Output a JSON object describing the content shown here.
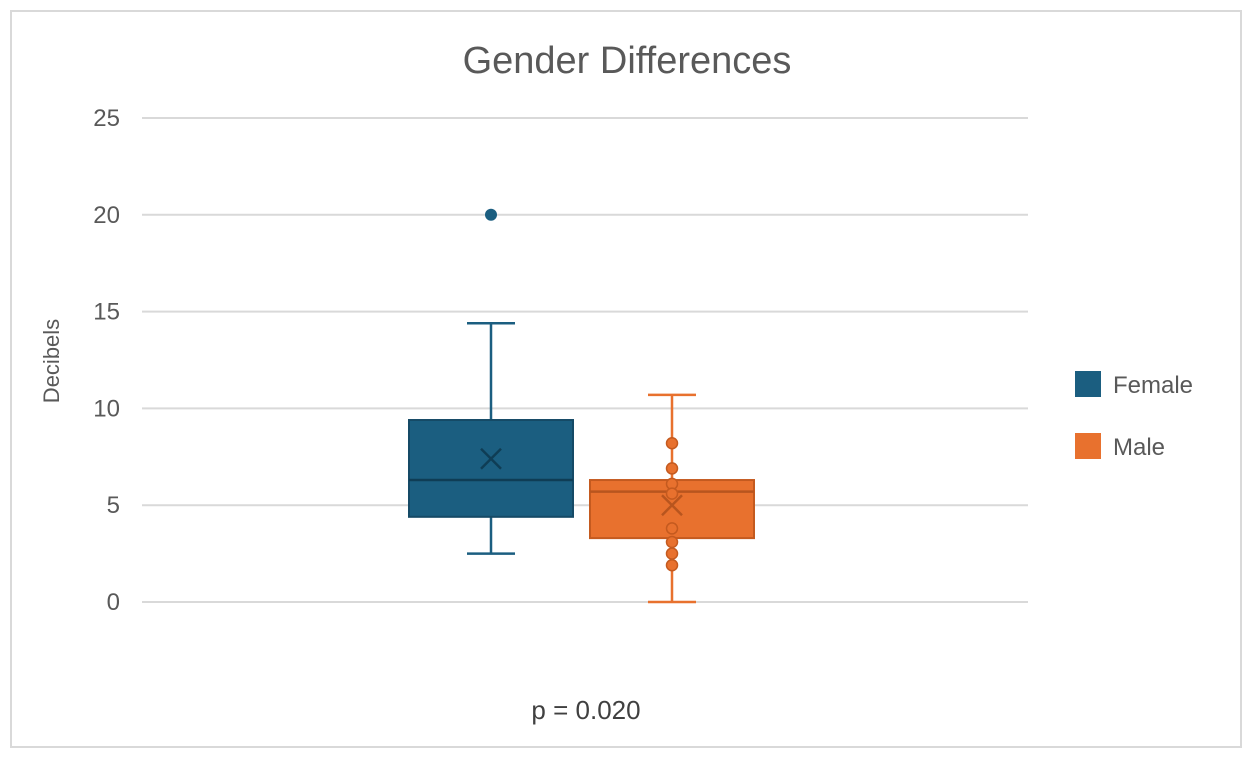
{
  "chart_data": {
    "type": "box",
    "title": "Gender Differences",
    "xlabel": "",
    "ylabel": "Decibels",
    "ylim": [
      0,
      25
    ],
    "yticks": [
      0,
      5,
      10,
      15,
      20,
      25
    ],
    "grid": true,
    "legend_position": "right",
    "categories": [
      "p = 0.020"
    ],
    "series": [
      {
        "name": "Female",
        "color": "#1b5e80",
        "whisker_low": 2.5,
        "q1": 4.4,
        "median": 6.3,
        "q3": 9.4,
        "whisker_high": 14.4,
        "mean": 7.4,
        "outliers": [
          20
        ],
        "points": []
      },
      {
        "name": "Male",
        "color": "#e8712e",
        "whisker_low": 0,
        "q1": 3.3,
        "median": 5.7,
        "q3": 6.3,
        "whisker_high": 10.7,
        "mean": 5.0,
        "outliers": [],
        "points": [
          8.2,
          6.9,
          6.1,
          5.6,
          3.8,
          3.1,
          2.5,
          1.9
        ]
      }
    ]
  }
}
